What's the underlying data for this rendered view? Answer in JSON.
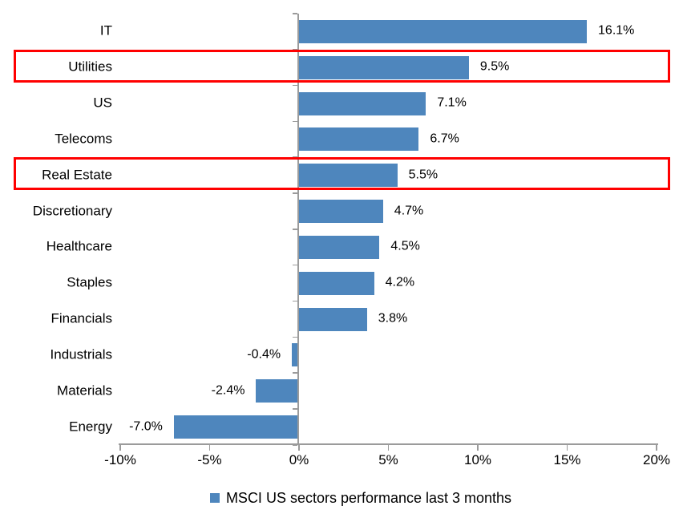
{
  "chart_data": {
    "type": "bar",
    "orientation": "horizontal",
    "title": "",
    "categories": [
      "IT",
      "Utilities",
      "US",
      "Telecoms",
      "Real Estate",
      "Discretionary",
      "Healthcare",
      "Staples",
      "Financials",
      "Industrials",
      "Materials",
      "Energy"
    ],
    "values": [
      16.1,
      9.5,
      7.1,
      6.7,
      5.5,
      4.7,
      4.5,
      4.2,
      3.8,
      -0.4,
      -2.4,
      -7.0
    ],
    "value_labels": [
      "16.1%",
      "9.5%",
      "7.1%",
      "6.7%",
      "5.5%",
      "4.7%",
      "4.5%",
      "4.2%",
      "3.8%",
      "-0.4%",
      "-2.4%",
      "-7.0%"
    ],
    "xlim": [
      -10,
      20
    ],
    "x_ticks": [
      -10,
      -5,
      0,
      5,
      10,
      15,
      20
    ],
    "x_tick_labels": [
      "-10%",
      "-5%",
      "0%",
      "5%",
      "10%",
      "15%",
      "20%"
    ],
    "grid": false,
    "legend_position": "bottom",
    "legend": [
      {
        "label": "MSCI US sectors performance last 3 months",
        "color": "#4E86BD"
      }
    ],
    "highlighted_categories": [
      "Utilities",
      "Real Estate"
    ],
    "bar_color": "#4E86BD",
    "highlight_color": "#FF0000",
    "axis_color": "#9B9B9B",
    "text_color": "#000000",
    "background_color": "#FFFFFF"
  }
}
